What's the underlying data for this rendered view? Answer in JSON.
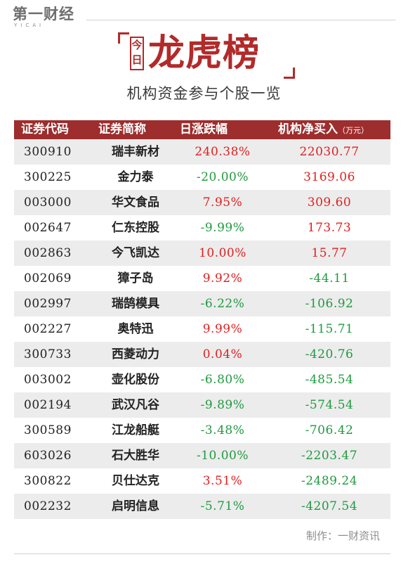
{
  "header": {
    "logo_main": "第一财经",
    "logo_sub": "YICAI",
    "today_char_1": "今",
    "today_char_2": "日",
    "title": "龙虎榜",
    "subtitle": "机构资金参与个股一览"
  },
  "table": {
    "columns": [
      "证券代码",
      "证券简称",
      "日涨跌幅",
      "机构净买入",
      "（万元）"
    ],
    "rows": [
      {
        "code": "300910",
        "name": "瑞丰新材",
        "change": "240.38%",
        "net_buy": "22030.77"
      },
      {
        "code": "300225",
        "name": "金力泰",
        "change": "-20.00%",
        "net_buy": "3169.06"
      },
      {
        "code": "003000",
        "name": "华文食品",
        "change": "7.95%",
        "net_buy": "309.60"
      },
      {
        "code": "002647",
        "name": "仁东控股",
        "change": "-9.99%",
        "net_buy": "173.73"
      },
      {
        "code": "002863",
        "name": "今飞凯达",
        "change": "10.00%",
        "net_buy": "15.77"
      },
      {
        "code": "002069",
        "name": "獐子岛",
        "change": "9.92%",
        "net_buy": "-44.11"
      },
      {
        "code": "002997",
        "name": "瑞鹄模具",
        "change": "-6.22%",
        "net_buy": "-106.92"
      },
      {
        "code": "002227",
        "name": "奥特迅",
        "change": "9.99%",
        "net_buy": "-115.71"
      },
      {
        "code": "300733",
        "name": "西菱动力",
        "change": "0.04%",
        "net_buy": "-420.76"
      },
      {
        "code": "003002",
        "name": "壶化股份",
        "change": "-6.80%",
        "net_buy": "-485.54"
      },
      {
        "code": "002194",
        "name": "武汉凡谷",
        "change": "-9.89%",
        "net_buy": "-574.54"
      },
      {
        "code": "300589",
        "name": "江龙船艇",
        "change": "-3.48%",
        "net_buy": "-706.42"
      },
      {
        "code": "603026",
        "name": "石大胜华",
        "change": "-10.00%",
        "net_buy": "-2203.47"
      },
      {
        "code": "300822",
        "name": "贝仕达克",
        "change": "3.51%",
        "net_buy": "-2489.24"
      },
      {
        "code": "002232",
        "name": "启明信息",
        "change": "-5.71%",
        "net_buy": "-4207.54"
      }
    ]
  },
  "footer": {
    "credit": "制作：一财资讯"
  },
  "colors": {
    "accent": "#b22a2a",
    "header_bg": "#9e2d2d",
    "positive": "#e01f1f",
    "negative": "#1f9a3e",
    "stripe": "#ececec"
  }
}
